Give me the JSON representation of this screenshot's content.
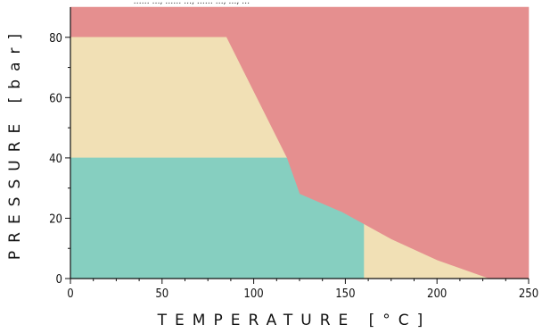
{
  "chart_data": {
    "type": "area",
    "title": "",
    "top_cut_text": "…… …, …… …, …… …, …, …",
    "xlabel": "TEMPERATURE [°C]",
    "ylabel": "PRESSURE [bar]",
    "xlim": [
      0,
      250
    ],
    "ylim": [
      0,
      90
    ],
    "x_ticks": [
      0,
      50,
      100,
      150,
      200,
      250
    ],
    "y_ticks": [
      0,
      20,
      40,
      60,
      80
    ],
    "grid": false,
    "legend": "none",
    "regions": [
      {
        "color": "#e58f8f",
        "polygon": [
          [
            0,
            90
          ],
          [
            250,
            90
          ],
          [
            250,
            0
          ],
          [
            228,
            0
          ],
          [
            200,
            6
          ],
          [
            175,
            13
          ],
          [
            160,
            18
          ],
          [
            148,
            22
          ],
          [
            125,
            28
          ],
          [
            85,
            80
          ],
          [
            0,
            80
          ]
        ]
      },
      {
        "color": "#f1e0b5",
        "polygon": [
          [
            0,
            80
          ],
          [
            85,
            80
          ],
          [
            118,
            40
          ],
          [
            0,
            40
          ]
        ]
      },
      {
        "color": "#f1e0b5",
        "polygon": [
          [
            160,
            18
          ],
          [
            175,
            13
          ],
          [
            200,
            6
          ],
          [
            228,
            0
          ],
          [
            160,
            0
          ]
        ]
      },
      {
        "color": "#86cfc0",
        "polygon": [
          [
            0,
            40
          ],
          [
            118,
            40
          ],
          [
            125,
            28
          ],
          [
            148,
            22
          ],
          [
            160,
            18
          ],
          [
            160,
            0
          ],
          [
            0,
            0
          ]
        ]
      }
    ],
    "colors": {
      "axis": "#111111",
      "text": "#111111"
    }
  }
}
